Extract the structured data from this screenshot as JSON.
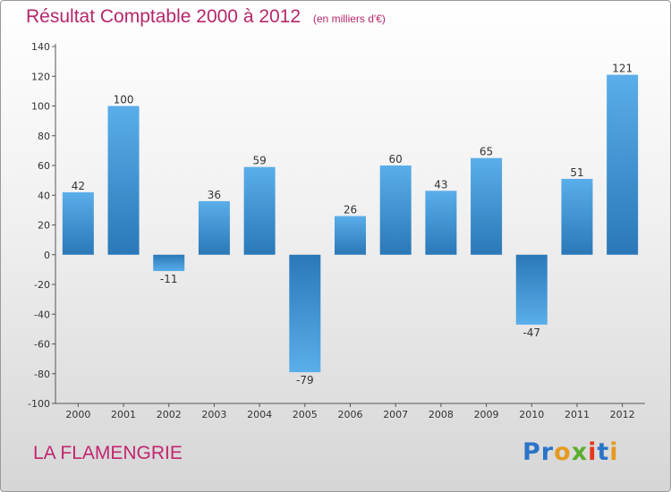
{
  "header": {
    "title": "Résultat Comptable 2000 à 2012",
    "subtitle": "(en milliers d'€)"
  },
  "footer": {
    "commune": "LA FLAMENGRIE",
    "logo_letters": [
      "P",
      "r",
      "o",
      "x",
      "i",
      "t",
      "i"
    ]
  },
  "colors": {
    "title": "#b5266a",
    "bar_light": "#5aaeea",
    "bar_dark": "#2a78b8",
    "logo": [
      "#2b74c9",
      "#2b74c9",
      "#e59a1f",
      "#5cae2e",
      "#e5361f",
      "#2b74c9",
      "#e59a1f"
    ]
  },
  "chart_data": {
    "type": "bar",
    "title": "Résultat Comptable 2000 à 2012",
    "categories": [
      "2000",
      "2001",
      "2002",
      "2003",
      "2004",
      "2005",
      "2006",
      "2007",
      "2008",
      "2009",
      "2010",
      "2011",
      "2012"
    ],
    "values": [
      42,
      100,
      -11,
      36,
      59,
      -79,
      26,
      60,
      43,
      65,
      -47,
      51,
      121
    ],
    "ylim": [
      -100,
      140
    ],
    "yticks": [
      140,
      120,
      100,
      80,
      60,
      40,
      20,
      0,
      -20,
      -40,
      -60,
      -80,
      -100
    ],
    "grid": false,
    "legend": "none"
  }
}
